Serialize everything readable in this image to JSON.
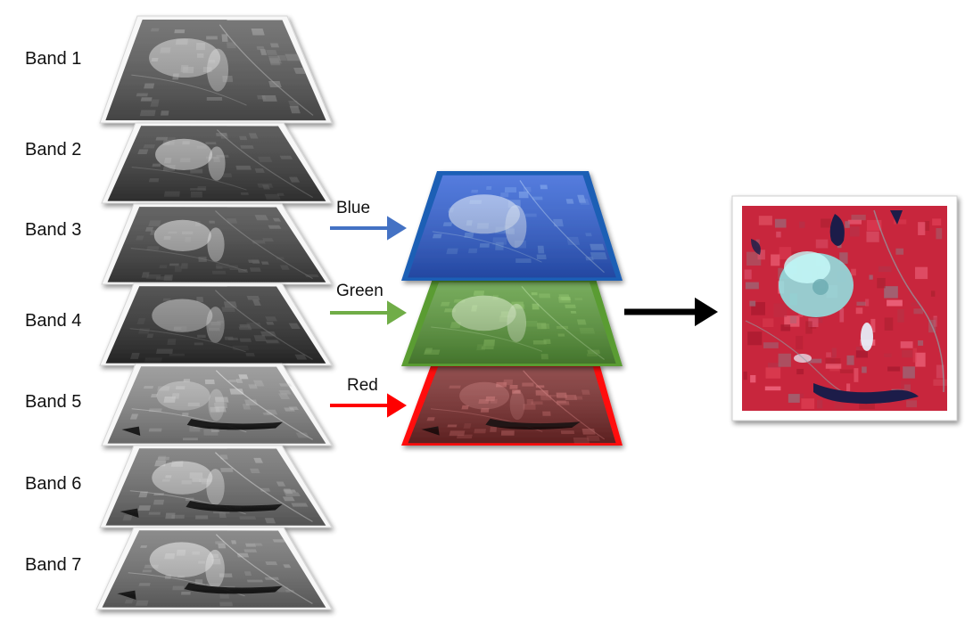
{
  "bands": [
    {
      "label": "Band 1",
      "tone": "#5a5a5a"
    },
    {
      "label": "Band 2",
      "tone": "#3c3c3c"
    },
    {
      "label": "Band 3",
      "tone": "#444444"
    },
    {
      "label": "Band 4",
      "tone": "#303030"
    },
    {
      "label": "Band 5",
      "tone": "#8a8a8a"
    },
    {
      "label": "Band 6",
      "tone": "#6e6e6e"
    },
    {
      "label": "Band 7",
      "tone": "#727272"
    }
  ],
  "channels": [
    {
      "label": "Blue",
      "color": "#4472c4"
    },
    {
      "label": "Green",
      "color": "#70ad47"
    },
    {
      "label": "Red",
      "color": "#ff0000"
    }
  ],
  "colors": {
    "blue_layer": "#2f5fd6",
    "blue_border": "#1f5fb5",
    "green_layer": "#5a9a3a",
    "green_border": "#5a9c32",
    "red_layer": "#7a2a2a",
    "red_border": "#ff1010",
    "composite_base": "#c8283c",
    "composite_glacier": "#8fe8e8",
    "composite_water": "#1a1f4a",
    "arrow_black": "#000000"
  }
}
